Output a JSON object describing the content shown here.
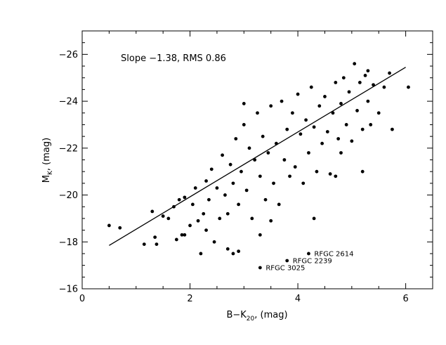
{
  "chart_data": {
    "type": "scatter",
    "title": "",
    "annotation": "Slope  −1.38,  RMS  0.86",
    "xlabel": {
      "main": "B−K",
      "sub": "20",
      "suffix": ", (mag)"
    },
    "ylabel": {
      "main": "M",
      "sub": "K",
      "suffix": ", (mag)"
    },
    "xlim": [
      0,
      6.5
    ],
    "ylim": [
      -16,
      -27
    ],
    "y_inverted": true,
    "grid": false,
    "x_ticks": [
      {
        "value": 0,
        "label": "0"
      },
      {
        "value": 2,
        "label": "2"
      },
      {
        "value": 4,
        "label": "4"
      },
      {
        "value": 6,
        "label": "6"
      }
    ],
    "y_ticks": [
      {
        "value": -16,
        "label": "−16"
      },
      {
        "value": -18,
        "label": "−18"
      },
      {
        "value": -20,
        "label": "−20"
      },
      {
        "value": -22,
        "label": "−22"
      },
      {
        "value": -24,
        "label": "−24"
      },
      {
        "value": -26,
        "label": "−26"
      }
    ],
    "fit_line": {
      "x": [
        0.5,
        6.0
      ],
      "y": [
        -17.85,
        -25.45
      ]
    },
    "labeled_points": [
      {
        "label": "RFGC  2614",
        "x": 4.2,
        "y": -17.5
      },
      {
        "label": "RFGC  2239",
        "x": 3.8,
        "y": -17.2
      },
      {
        "label": "RFGC  3025",
        "x": 3.3,
        "y": -16.9
      }
    ],
    "points": [
      [
        0.5,
        -18.7
      ],
      [
        0.7,
        -18.6
      ],
      [
        1.15,
        -17.9
      ],
      [
        1.3,
        -19.3
      ],
      [
        1.35,
        -18.2
      ],
      [
        1.38,
        -17.9
      ],
      [
        1.5,
        -19.1
      ],
      [
        1.6,
        -19.0
      ],
      [
        1.7,
        -19.5
      ],
      [
        1.75,
        -18.1
      ],
      [
        1.8,
        -19.8
      ],
      [
        1.85,
        -18.3
      ],
      [
        1.9,
        -19.9
      ],
      [
        1.9,
        -18.3
      ],
      [
        2.0,
        -18.7
      ],
      [
        2.05,
        -19.6
      ],
      [
        2.1,
        -20.3
      ],
      [
        2.15,
        -18.9
      ],
      [
        2.2,
        -17.5
      ],
      [
        2.25,
        -19.2
      ],
      [
        2.3,
        -20.6
      ],
      [
        2.3,
        -18.5
      ],
      [
        2.35,
        -19.8
      ],
      [
        2.4,
        -21.1
      ],
      [
        2.45,
        -18.0
      ],
      [
        2.5,
        -20.3
      ],
      [
        2.55,
        -19.0
      ],
      [
        2.6,
        -21.7
      ],
      [
        2.65,
        -20.0
      ],
      [
        2.7,
        -17.7
      ],
      [
        2.7,
        -19.2
      ],
      [
        2.75,
        -21.3
      ],
      [
        2.8,
        -17.5
      ],
      [
        2.8,
        -20.5
      ],
      [
        2.85,
        -22.4
      ],
      [
        2.9,
        -19.6
      ],
      [
        2.95,
        -21.0
      ],
      [
        3.0,
        -23.0
      ],
      [
        3.05,
        -20.2
      ],
      [
        3.1,
        -22.0
      ],
      [
        3.15,
        -19.0
      ],
      [
        3.2,
        -21.5
      ],
      [
        3.25,
        -23.5
      ],
      [
        3.3,
        -18.3
      ],
      [
        3.3,
        -20.8
      ],
      [
        3.35,
        -22.5
      ],
      [
        3.4,
        -19.8
      ],
      [
        3.45,
        -21.8
      ],
      [
        3.5,
        -23.8
      ],
      [
        3.55,
        -20.5
      ],
      [
        3.6,
        -22.2
      ],
      [
        3.65,
        -19.6
      ],
      [
        3.7,
        -24.0
      ],
      [
        3.75,
        -21.5
      ],
      [
        3.8,
        -22.8
      ],
      [
        3.85,
        -20.8
      ],
      [
        3.9,
        -23.5
      ],
      [
        3.95,
        -21.2
      ],
      [
        4.0,
        -24.3
      ],
      [
        4.05,
        -22.6
      ],
      [
        4.1,
        -20.5
      ],
      [
        4.15,
        -23.2
      ],
      [
        4.2,
        -21.8
      ],
      [
        4.25,
        -24.6
      ],
      [
        4.3,
        -22.9
      ],
      [
        4.35,
        -21.0
      ],
      [
        4.4,
        -23.8
      ],
      [
        4.45,
        -22.2
      ],
      [
        4.5,
        -24.2
      ],
      [
        4.55,
        -22.7
      ],
      [
        4.6,
        -20.9
      ],
      [
        4.65,
        -23.5
      ],
      [
        4.7,
        -24.8
      ],
      [
        4.75,
        -22.4
      ],
      [
        4.8,
        -23.9
      ],
      [
        4.85,
        -25.0
      ],
      [
        4.9,
        -23.0
      ],
      [
        4.95,
        -24.4
      ],
      [
        5.0,
        -22.3
      ],
      [
        5.05,
        -25.6
      ],
      [
        5.1,
        -23.6
      ],
      [
        5.15,
        -24.8
      ],
      [
        5.2,
        -22.8
      ],
      [
        5.25,
        -25.1
      ],
      [
        5.3,
        -24.0
      ],
      [
        5.35,
        -23.0
      ],
      [
        5.4,
        -24.7
      ],
      [
        5.5,
        -23.5
      ],
      [
        5.6,
        -24.6
      ],
      [
        5.7,
        -25.2
      ],
      [
        5.75,
        -22.8
      ],
      [
        6.05,
        -24.6
      ],
      [
        5.2,
        -21.0
      ],
      [
        4.7,
        -20.8
      ],
      [
        4.3,
        -19.0
      ],
      [
        3.5,
        -18.9
      ],
      [
        2.9,
        -17.6
      ],
      [
        4.8,
        -21.8
      ],
      [
        5.3,
        -25.3
      ],
      [
        3.0,
        -23.9
      ]
    ]
  }
}
